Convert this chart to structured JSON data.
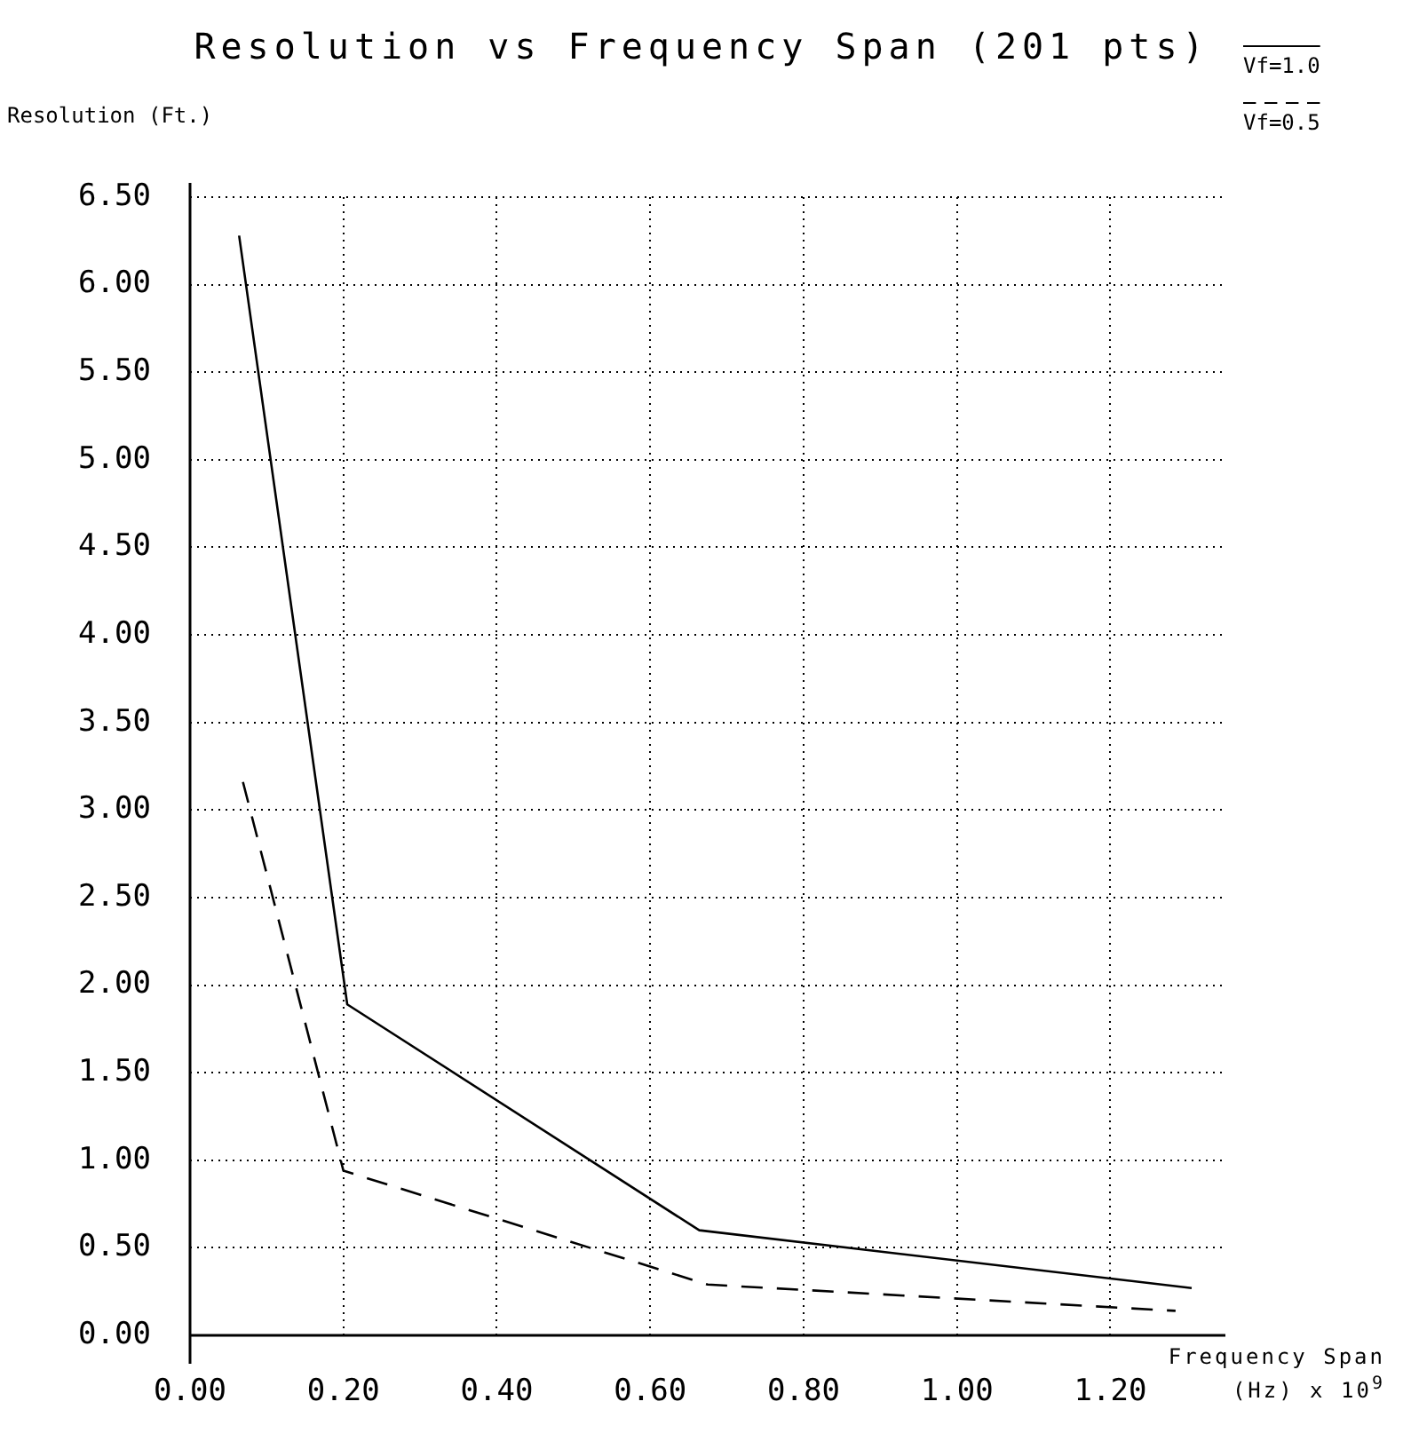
{
  "chart_data": {
    "type": "line",
    "title": "Resolution vs Frequency Span (201 pts)",
    "ylabel": "Resolution (Ft.)",
    "xlabel": "Frequency Span\n(Hz) x 10$^{9}$",
    "series": [
      {
        "name": "Vf=1.0",
        "color": "#000000",
        "line_style": "solid",
        "x": [
          0.064,
          0.205,
          0.664,
          1.306
        ],
        "values": [
          6.28,
          1.89,
          0.6,
          0.27
        ]
      },
      {
        "name": "Vf=0.5",
        "color": "#000000",
        "line_style": "dashed",
        "x": [
          0.069,
          0.2,
          0.675,
          1.285
        ],
        "values": [
          3.16,
          0.94,
          0.29,
          0.14
        ]
      }
    ],
    "xlim": [
      0,
      1.35
    ],
    "xticks": [
      {
        "value": 0,
        "label": "0.00"
      },
      {
        "value": 0.2,
        "label": "0.20"
      },
      {
        "value": 0.4,
        "label": "0.40"
      },
      {
        "value": 0.6,
        "label": "0.60"
      },
      {
        "value": 0.8,
        "label": "0.80"
      },
      {
        "value": 1,
        "label": "1.00"
      },
      {
        "value": 1.2,
        "label": "1.20"
      }
    ],
    "ylim": [
      0,
      6.5
    ],
    "yticks": [
      {
        "value": 0,
        "label": "0.00"
      },
      {
        "value": 0.5,
        "label": "0.50"
      },
      {
        "value": 1,
        "label": "1.00"
      },
      {
        "value": 1.5,
        "label": "1.50"
      },
      {
        "value": 2,
        "label": "2.00"
      },
      {
        "value": 2.5,
        "label": "2.50"
      },
      {
        "value": 3,
        "label": "3.00"
      },
      {
        "value": 3.5,
        "label": "3.50"
      },
      {
        "value": 4,
        "label": "4.00"
      },
      {
        "value": 4.5,
        "label": "4.50"
      },
      {
        "value": 5,
        "label": "5.00"
      },
      {
        "value": 5.5,
        "label": "5.50"
      },
      {
        "value": 6,
        "label": "6.00"
      },
      {
        "value": 6.5,
        "label": "6.50"
      }
    ],
    "grid": true,
    "legend": "top right",
    "marker": "none"
  }
}
